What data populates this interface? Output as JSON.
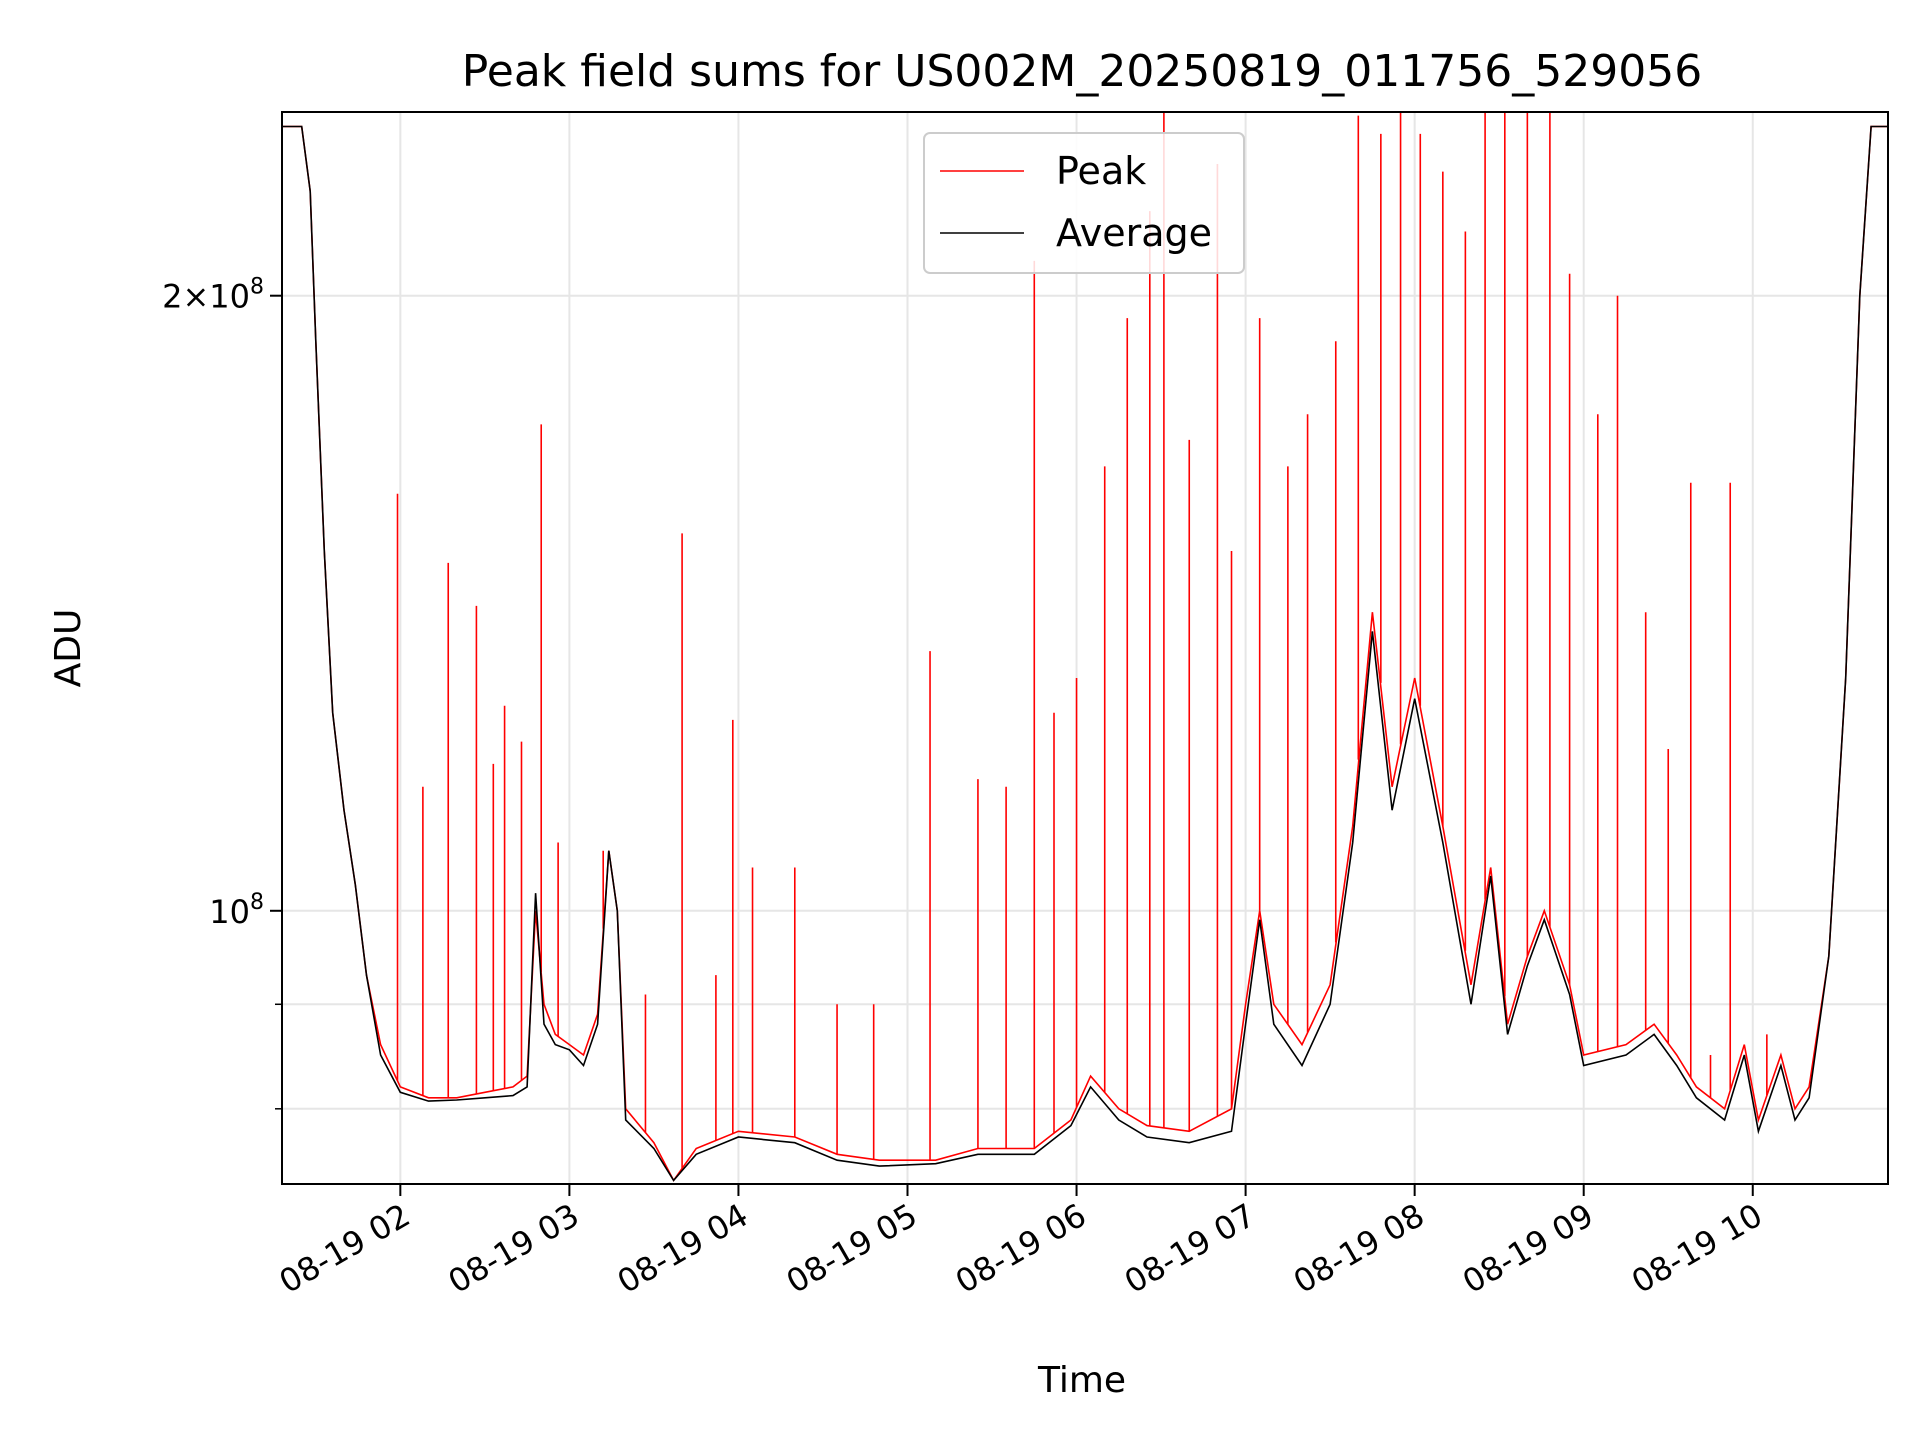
{
  "chart_data": {
    "type": "line",
    "title": "Peak field sums for US002M_20250819_011756_529056",
    "xlabel": "Time",
    "ylabel": "ADU",
    "yscale": "log",
    "grid": true,
    "legend_position": "top-center",
    "x_range": [
      "2025-08-19 01:18",
      "2025-08-19 10:48"
    ],
    "ylim": [
      73500000,
      246000000
    ],
    "x_ticks": [
      "08-19 02",
      "08-19 03",
      "08-19 04",
      "08-19 05",
      "08-19 06",
      "08-19 07",
      "08-19 08",
      "08-19 09",
      "08-19 10"
    ],
    "y_ticks": [
      {
        "value": 100000000,
        "mantissa": "",
        "exponent": "8"
      },
      {
        "value": 200000000,
        "mantissa": "2",
        "exponent": "8"
      }
    ],
    "y_minor_ticks": [
      80000000,
      90000000
    ],
    "series": [
      {
        "name": "Peak",
        "color": "#ff0000",
        "baseline": [
          [
            "01:18",
            242000000
          ],
          [
            "01:25",
            242000000
          ],
          [
            "01:28",
            225000000
          ],
          [
            "01:30",
            190000000
          ],
          [
            "01:33",
            150000000
          ],
          [
            "01:36",
            125000000
          ],
          [
            "01:40",
            112000000
          ],
          [
            "01:44",
            103000000
          ],
          [
            "01:48",
            93000000
          ],
          [
            "01:53",
            86000000
          ],
          [
            "02:00",
            82000000
          ],
          [
            "02:10",
            81000000
          ],
          [
            "02:20",
            81000000
          ],
          [
            "02:30",
            81500000
          ],
          [
            "02:40",
            82000000
          ],
          [
            "02:45",
            83000000
          ],
          [
            "02:48",
            100000000
          ],
          [
            "02:51",
            90000000
          ],
          [
            "02:55",
            87000000
          ],
          [
            "03:00",
            86000000
          ],
          [
            "03:05",
            85000000
          ],
          [
            "03:10",
            89000000
          ],
          [
            "03:14",
            107000000
          ],
          [
            "03:17",
            100000000
          ],
          [
            "03:20",
            80000000
          ],
          [
            "03:30",
            77000000
          ],
          [
            "03:37",
            73800000
          ],
          [
            "03:45",
            76500000
          ],
          [
            "04:00",
            78000000
          ],
          [
            "04:20",
            77500000
          ],
          [
            "04:35",
            76000000
          ],
          [
            "04:50",
            75500000
          ],
          [
            "05:10",
            75500000
          ],
          [
            "05:25",
            76500000
          ],
          [
            "05:45",
            76500000
          ],
          [
            "05:58",
            79000000
          ],
          [
            "06:05",
            83000000
          ],
          [
            "06:15",
            80000000
          ],
          [
            "06:25",
            78500000
          ],
          [
            "06:40",
            78000000
          ],
          [
            "06:55",
            80000000
          ],
          [
            "07:00",
            90000000
          ],
          [
            "07:05",
            100000000
          ],
          [
            "07:10",
            90000000
          ],
          [
            "07:20",
            86000000
          ],
          [
            "07:30",
            92000000
          ],
          [
            "07:38",
            110000000
          ],
          [
            "07:45",
            140000000
          ],
          [
            "07:52",
            115000000
          ],
          [
            "08:00",
            130000000
          ],
          [
            "08:10",
            110000000
          ],
          [
            "08:20",
            92000000
          ],
          [
            "08:27",
            105000000
          ],
          [
            "08:33",
            88000000
          ],
          [
            "08:40",
            95000000
          ],
          [
            "08:46",
            100000000
          ],
          [
            "08:55",
            92000000
          ],
          [
            "09:00",
            85000000
          ],
          [
            "09:15",
            86000000
          ],
          [
            "09:25",
            88000000
          ],
          [
            "09:33",
            85000000
          ],
          [
            "09:40",
            82000000
          ],
          [
            "09:50",
            80000000
          ],
          [
            "09:57",
            86000000
          ],
          [
            "10:02",
            79000000
          ],
          [
            "10:10",
            85000000
          ],
          [
            "10:15",
            80000000
          ],
          [
            "10:20",
            82000000
          ],
          [
            "10:27",
            95000000
          ],
          [
            "10:33",
            130000000
          ],
          [
            "10:38",
            200000000
          ],
          [
            "10:42",
            242000000
          ],
          [
            "10:48",
            242000000
          ]
        ],
        "spikes": [
          [
            "01:59",
            160000000
          ],
          [
            "02:08",
            115000000
          ],
          [
            "02:17",
            148000000
          ],
          [
            "02:27",
            141000000
          ],
          [
            "02:33",
            118000000
          ],
          [
            "02:37",
            126000000
          ],
          [
            "02:43",
            121000000
          ],
          [
            "02:50",
            173000000
          ],
          [
            "02:56",
            108000000
          ],
          [
            "03:12",
            107000000
          ],
          [
            "03:27",
            91000000
          ],
          [
            "03:40",
            153000000
          ],
          [
            "03:52",
            93000000
          ],
          [
            "03:58",
            124000000
          ],
          [
            "04:05",
            105000000
          ],
          [
            "04:20",
            105000000
          ],
          [
            "04:35",
            90000000
          ],
          [
            "04:48",
            90000000
          ],
          [
            "05:08",
            134000000
          ],
          [
            "05:25",
            116000000
          ],
          [
            "05:35",
            115000000
          ],
          [
            "05:45",
            208000000
          ],
          [
            "05:52",
            125000000
          ],
          [
            "06:00",
            130000000
          ],
          [
            "06:10",
            165000000
          ],
          [
            "06:18",
            195000000
          ],
          [
            "06:26",
            220000000
          ],
          [
            "06:31",
            246000000
          ],
          [
            "06:40",
            170000000
          ],
          [
            "06:50",
            232000000
          ],
          [
            "06:55",
            150000000
          ],
          [
            "07:05",
            195000000
          ],
          [
            "07:15",
            165000000
          ],
          [
            "07:22",
            175000000
          ],
          [
            "07:32",
            190000000
          ],
          [
            "07:40",
            245000000
          ],
          [
            "07:48",
            240000000
          ],
          [
            "07:55",
            246000000
          ],
          [
            "08:02",
            240000000
          ],
          [
            "08:10",
            230000000
          ],
          [
            "08:18",
            215000000
          ],
          [
            "08:25",
            246000000
          ],
          [
            "08:32",
            246000000
          ],
          [
            "08:40",
            246000000
          ],
          [
            "08:48",
            246000000
          ],
          [
            "08:55",
            205000000
          ],
          [
            "09:05",
            175000000
          ],
          [
            "09:12",
            200000000
          ],
          [
            "09:22",
            140000000
          ],
          [
            "09:30",
            120000000
          ],
          [
            "09:38",
            162000000
          ],
          [
            "09:45",
            85000000
          ],
          [
            "09:52",
            162000000
          ],
          [
            "10:05",
            87000000
          ]
        ]
      },
      {
        "name": "Average",
        "color": "#000000",
        "points": [
          [
            "01:18",
            242000000
          ],
          [
            "01:25",
            242000000
          ],
          [
            "01:28",
            225000000
          ],
          [
            "01:30",
            190000000
          ],
          [
            "01:33",
            150000000
          ],
          [
            "01:36",
            125000000
          ],
          [
            "01:40",
            112000000
          ],
          [
            "01:44",
            103000000
          ],
          [
            "01:48",
            93000000
          ],
          [
            "01:53",
            85000000
          ],
          [
            "02:00",
            81500000
          ],
          [
            "02:10",
            80700000
          ],
          [
            "02:20",
            80800000
          ],
          [
            "02:30",
            81000000
          ],
          [
            "02:40",
            81200000
          ],
          [
            "02:45",
            82000000
          ],
          [
            "02:48",
            102000000
          ],
          [
            "02:51",
            88000000
          ],
          [
            "02:55",
            86000000
          ],
          [
            "03:00",
            85500000
          ],
          [
            "03:05",
            84000000
          ],
          [
            "03:10",
            88000000
          ],
          [
            "03:14",
            107000000
          ],
          [
            "03:17",
            100000000
          ],
          [
            "03:20",
            79000000
          ],
          [
            "03:30",
            76500000
          ],
          [
            "03:37",
            73800000
          ],
          [
            "03:45",
            76000000
          ],
          [
            "04:00",
            77500000
          ],
          [
            "04:20",
            77000000
          ],
          [
            "04:35",
            75500000
          ],
          [
            "04:50",
            75000000
          ],
          [
            "05:10",
            75200000
          ],
          [
            "05:25",
            76000000
          ],
          [
            "05:45",
            76000000
          ],
          [
            "05:58",
            78500000
          ],
          [
            "06:05",
            82000000
          ],
          [
            "06:15",
            79000000
          ],
          [
            "06:25",
            77500000
          ],
          [
            "06:40",
            77000000
          ],
          [
            "06:55",
            78000000
          ],
          [
            "07:00",
            88000000
          ],
          [
            "07:05",
            99000000
          ],
          [
            "07:10",
            88000000
          ],
          [
            "07:20",
            84000000
          ],
          [
            "07:30",
            90000000
          ],
          [
            "07:38",
            108000000
          ],
          [
            "07:45",
            137000000
          ],
          [
            "07:52",
            112000000
          ],
          [
            "08:00",
            127000000
          ],
          [
            "08:10",
            108000000
          ],
          [
            "08:20",
            90000000
          ],
          [
            "08:27",
            104000000
          ],
          [
            "08:33",
            87000000
          ],
          [
            "08:40",
            94000000
          ],
          [
            "08:46",
            99000000
          ],
          [
            "08:55",
            91000000
          ],
          [
            "09:00",
            84000000
          ],
          [
            "09:15",
            85000000
          ],
          [
            "09:25",
            87000000
          ],
          [
            "09:33",
            84000000
          ],
          [
            "09:40",
            81000000
          ],
          [
            "09:50",
            79000000
          ],
          [
            "09:57",
            85000000
          ],
          [
            "10:02",
            78000000
          ],
          [
            "10:10",
            84000000
          ],
          [
            "10:15",
            79000000
          ],
          [
            "10:20",
            81000000
          ],
          [
            "10:27",
            95000000
          ],
          [
            "10:33",
            130000000
          ],
          [
            "10:38",
            200000000
          ],
          [
            "10:42",
            242000000
          ],
          [
            "10:48",
            242000000
          ]
        ]
      }
    ]
  }
}
